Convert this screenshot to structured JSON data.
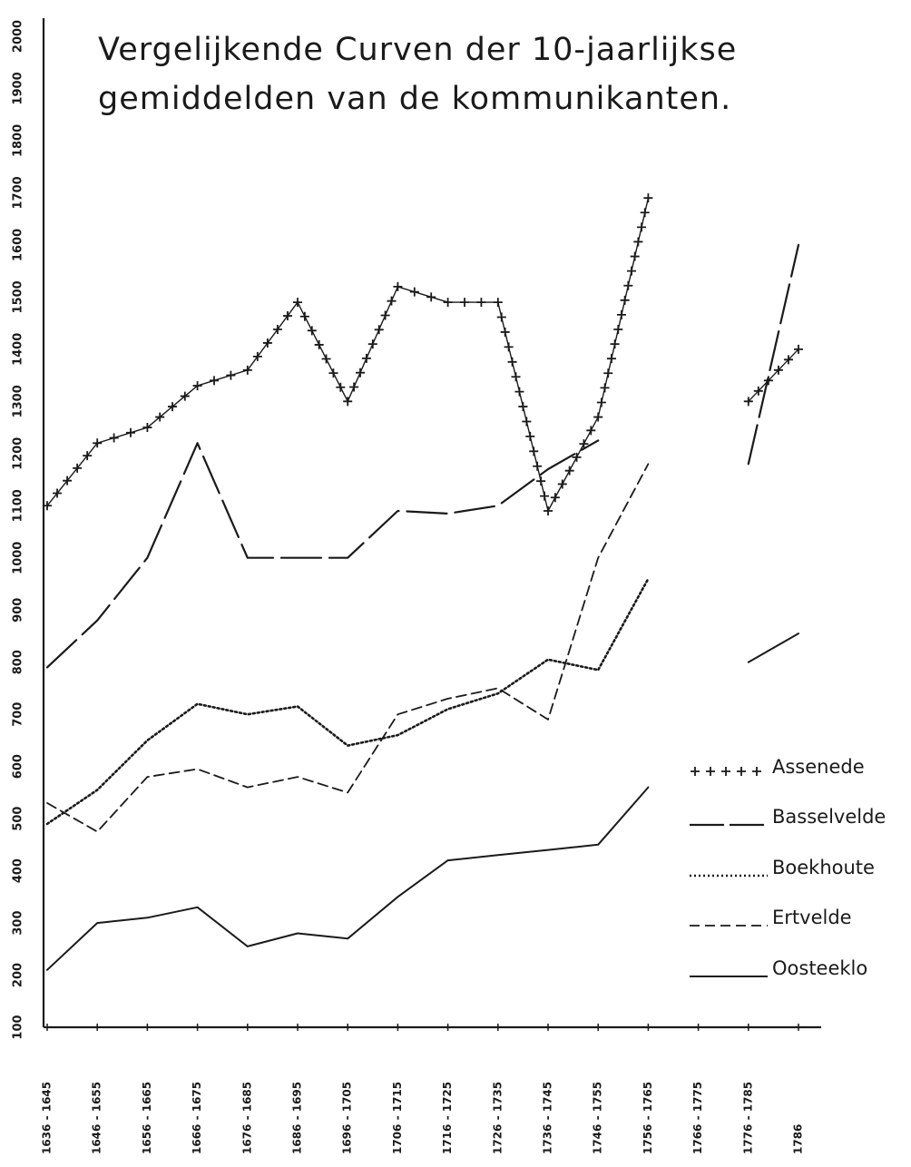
{
  "chart_data": {
    "type": "line",
    "title_line_1": "Vergelijkende Curven der 10-jaarlijkse",
    "title_line_2": "gemiddelden van de kommunikanten.",
    "xlabel": "",
    "ylabel": "",
    "ylim": [
      100,
      2000
    ],
    "yticks": [
      "100",
      "200",
      "300",
      "400",
      "500",
      "600",
      "700",
      "800",
      "900",
      "1000",
      "1100",
      "1200",
      "1300",
      "1400",
      "1500",
      "1600",
      "1700",
      "1800",
      "1900",
      "2000"
    ],
    "ytick_values": [
      100,
      200,
      300,
      400,
      500,
      600,
      700,
      800,
      900,
      1000,
      1100,
      1200,
      1300,
      1400,
      1500,
      1600,
      1700,
      1800,
      1900,
      2000
    ],
    "categories": [
      "1636 - 1645",
      "1646 - 1655",
      "1656 - 1665",
      "1666 - 1675",
      "1676 - 1685",
      "1686 - 1695",
      "1696 - 1705",
      "1706 - 1715",
      "1716 - 1725",
      "1726 - 1735",
      "1736 - 1745",
      "1746 - 1755",
      "1756 - 1765",
      "1766 - 1775",
      "1776 - 1785",
      "1786"
    ],
    "grid": false,
    "legend_position": "bottom-right",
    "series": [
      {
        "name": "Assenede",
        "style": "plus",
        "segments": [
          [
            [
              0,
              1100
            ],
            [
              1,
              1220
            ],
            [
              2,
              1250
            ],
            [
              3,
              1330
            ],
            [
              4,
              1360
            ],
            [
              5,
              1490
            ],
            [
              6,
              1300
            ],
            [
              7,
              1520
            ],
            [
              8,
              1490
            ],
            [
              9,
              1490
            ],
            [
              10,
              1090
            ],
            [
              11,
              1270
            ],
            [
              12,
              1690
            ]
          ],
          [
            [
              14,
              1300
            ],
            [
              15,
              1400
            ]
          ]
        ]
      },
      {
        "name": "Basselvelde",
        "style": "longdash",
        "segments": [
          [
            [
              0,
              790
            ],
            [
              1,
              880
            ],
            [
              2,
              1000
            ],
            [
              3,
              1220
            ],
            [
              4,
              1000
            ],
            [
              5,
              1000
            ],
            [
              6,
              1000
            ],
            [
              7,
              1090
            ],
            [
              8,
              1085
            ],
            [
              9,
              1100
            ],
            [
              10,
              1170
            ],
            [
              11,
              1225
            ]
          ],
          [
            [
              14,
              1180
            ],
            [
              15,
              1600
            ]
          ]
        ]
      },
      {
        "name": "Boekhoute",
        "style": "dotted",
        "segments": [
          [
            [
              0,
              490
            ],
            [
              1,
              555
            ],
            [
              2,
              650
            ],
            [
              3,
              720
            ],
            [
              4,
              700
            ],
            [
              5,
              715
            ],
            [
              6,
              640
            ],
            [
              7,
              660
            ],
            [
              8,
              710
            ],
            [
              9,
              740
            ],
            [
              10,
              805
            ],
            [
              11,
              785
            ],
            [
              12,
              960
            ]
          ]
        ]
      },
      {
        "name": "Ertvelde",
        "style": "dashed",
        "segments": [
          [
            [
              0,
              530
            ],
            [
              1,
              475
            ],
            [
              2,
              580
            ],
            [
              3,
              595
            ],
            [
              4,
              560
            ],
            [
              5,
              580
            ],
            [
              6,
              550
            ],
            [
              7,
              700
            ],
            [
              8,
              730
            ],
            [
              9,
              750
            ],
            [
              10,
              690
            ],
            [
              11,
              1000
            ],
            [
              12,
              1180
            ]
          ]
        ]
      },
      {
        "name": "Oosteeklo",
        "style": "solid",
        "segments": [
          [
            [
              0,
              210
            ],
            [
              1,
              300
            ],
            [
              2,
              310
            ],
            [
              3,
              330
            ],
            [
              4,
              255
            ],
            [
              5,
              280
            ],
            [
              6,
              270
            ],
            [
              7,
              350
            ],
            [
              8,
              420
            ],
            [
              9,
              430
            ],
            [
              10,
              440
            ],
            [
              11,
              450
            ],
            [
              12,
              560
            ]
          ],
          [
            [
              14,
              800
            ],
            [
              15,
              855
            ]
          ]
        ]
      }
    ]
  }
}
